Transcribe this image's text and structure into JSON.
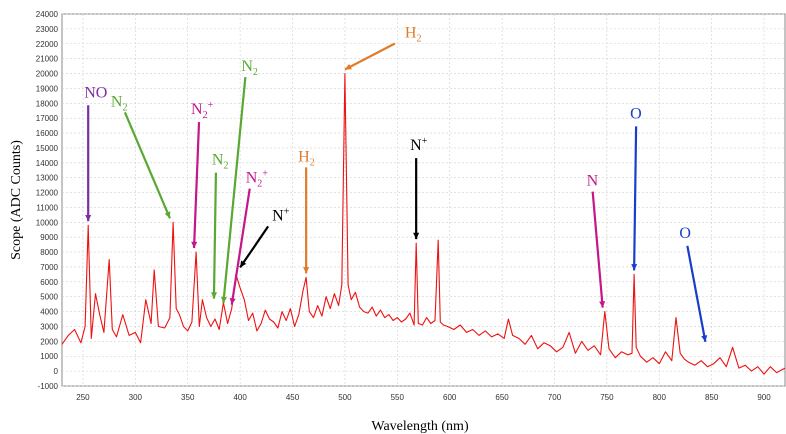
{
  "chart_data": {
    "type": "line",
    "xlabel": "Wavelength (nm)",
    "ylabel": "Scope (ADC Counts)",
    "xlim": [
      230,
      920
    ],
    "ylim": [
      -1000,
      24000
    ],
    "xticks": [
      250,
      300,
      350,
      400,
      450,
      500,
      550,
      600,
      650,
      700,
      750,
      800,
      850,
      900
    ],
    "yticks": [
      -1000,
      0,
      1000,
      2000,
      3000,
      4000,
      5000,
      6000,
      7000,
      8000,
      9000,
      10000,
      11000,
      12000,
      13000,
      14000,
      15000,
      16000,
      17000,
      18000,
      19000,
      20000,
      21000,
      22000,
      23000,
      24000
    ],
    "grid": true,
    "series_color": "#ee1111",
    "series": [
      {
        "values_desc": "",
        "x": [
          230,
          236,
          242,
          248,
          252,
          255,
          258,
          262,
          266,
          270,
          275,
          278,
          282,
          288,
          294,
          300,
          305,
          310,
          315,
          318,
          322,
          328,
          333,
          336,
          339,
          342,
          346,
          350,
          354,
          358,
          361,
          364,
          368,
          372,
          376,
          380,
          384,
          388,
          392,
          396,
          400,
          404,
          408,
          412,
          416,
          420,
          424,
          428,
          432,
          436,
          440,
          444,
          448,
          452,
          456,
          460,
          463,
          466,
          470,
          474,
          478,
          482,
          486,
          490,
          494,
          497,
          500,
          503,
          506,
          510,
          514,
          518,
          522,
          526,
          530,
          534,
          538,
          542,
          546,
          550,
          554,
          558,
          562,
          566,
          568,
          570,
          574,
          578,
          582,
          586,
          589,
          591,
          594,
          598,
          604,
          610,
          616,
          622,
          628,
          634,
          640,
          646,
          652,
          656,
          660,
          666,
          672,
          678,
          684,
          690,
          696,
          702,
          708,
          714,
          720,
          726,
          732,
          738,
          744,
          748,
          752,
          758,
          764,
          770,
          774,
          776,
          778,
          782,
          788,
          794,
          800,
          806,
          812,
          816,
          820,
          824,
          828,
          834,
          840,
          846,
          852,
          858,
          864,
          870,
          876,
          882,
          888,
          894,
          900,
          906,
          912,
          920
        ],
        "y": [
          1800,
          2400,
          2800,
          1900,
          3000,
          9800,
          2200,
          5200,
          3800,
          2600,
          7500,
          2800,
          2300,
          3800,
          2400,
          2600,
          1900,
          4800,
          3200,
          6800,
          3000,
          2900,
          3600,
          10000,
          4200,
          3800,
          3000,
          2700,
          3300,
          8000,
          3000,
          4800,
          3600,
          3000,
          3500,
          2800,
          4600,
          3200,
          4200,
          6500,
          5600,
          4800,
          3400,
          3900,
          2700,
          3200,
          4100,
          3500,
          3300,
          2900,
          4000,
          3400,
          4200,
          3000,
          3800,
          5400,
          6300,
          4000,
          3600,
          4400,
          3700,
          5000,
          4200,
          5200,
          4400,
          5800,
          20000,
          5800,
          4800,
          5300,
          4300,
          4000,
          3900,
          4300,
          3700,
          4100,
          3600,
          3800,
          3400,
          3600,
          3300,
          3500,
          3900,
          3100,
          8600,
          3200,
          3100,
          3600,
          3200,
          3400,
          8800,
          3300,
          3100,
          3000,
          2800,
          3100,
          2600,
          2800,
          2400,
          2700,
          2300,
          2500,
          2200,
          3500,
          2400,
          2200,
          1800,
          2400,
          1500,
          1900,
          1700,
          1300,
          1600,
          2600,
          1200,
          2000,
          1400,
          1700,
          1100,
          4000,
          1500,
          900,
          1300,
          1100,
          1200,
          6500,
          1600,
          1000,
          600,
          900,
          500,
          1300,
          700,
          3600,
          1200,
          800,
          600,
          400,
          700,
          300,
          500,
          900,
          300,
          1600,
          200,
          400,
          0,
          300,
          -200,
          300,
          -100,
          200
        ]
      }
    ],
    "annotations": [
      {
        "label": "NO",
        "sub": "",
        "sup": "",
        "color": "#7b2fa3",
        "x": 255,
        "y": 9800
      },
      {
        "label": "N",
        "sub": "2",
        "sup": "",
        "color": "#5aa832",
        "x": 333,
        "y": 10000
      },
      {
        "label": "N",
        "sub": "2",
        "sup": "+",
        "color": "#c4178a",
        "x": 356,
        "y": 8000
      },
      {
        "label": "N",
        "sub": "2",
        "sup": "",
        "color": "#5aa832",
        "x": 375,
        "y": 4600
      },
      {
        "label": "N",
        "sub": "2",
        "sup": "",
        "color": "#5aa832",
        "x": 384,
        "y": 4300
      },
      {
        "label": "N",
        "sub": "2",
        "sup": "+",
        "color": "#c4178a",
        "x": 392,
        "y": 4200
      },
      {
        "label": "N",
        "sub": "",
        "sup": "+",
        "color": "#000000",
        "x": 400,
        "y": 6700
      },
      {
        "label": "H",
        "sub": "2",
        "sup": "",
        "color": "#e07b2a",
        "x": 463,
        "y": 6300
      },
      {
        "label": "H",
        "sub": "2",
        "sup": "",
        "color": "#e07b2a",
        "x": 500,
        "y": 20000
      },
      {
        "label": "N",
        "sub": "",
        "sup": "+",
        "color": "#000000",
        "x": 568,
        "y": 8600
      },
      {
        "label": "N",
        "sub": "",
        "sup": "",
        "color": "#c4178a",
        "x": 746,
        "y": 4000
      },
      {
        "label": "O",
        "sub": "",
        "sup": "",
        "color": "#1a3dcc",
        "x": 776,
        "y": 6500
      },
      {
        "label": "O",
        "sub": "",
        "sup": "",
        "color": "#1a3dcc",
        "x": 844,
        "y": 1700
      }
    ]
  }
}
